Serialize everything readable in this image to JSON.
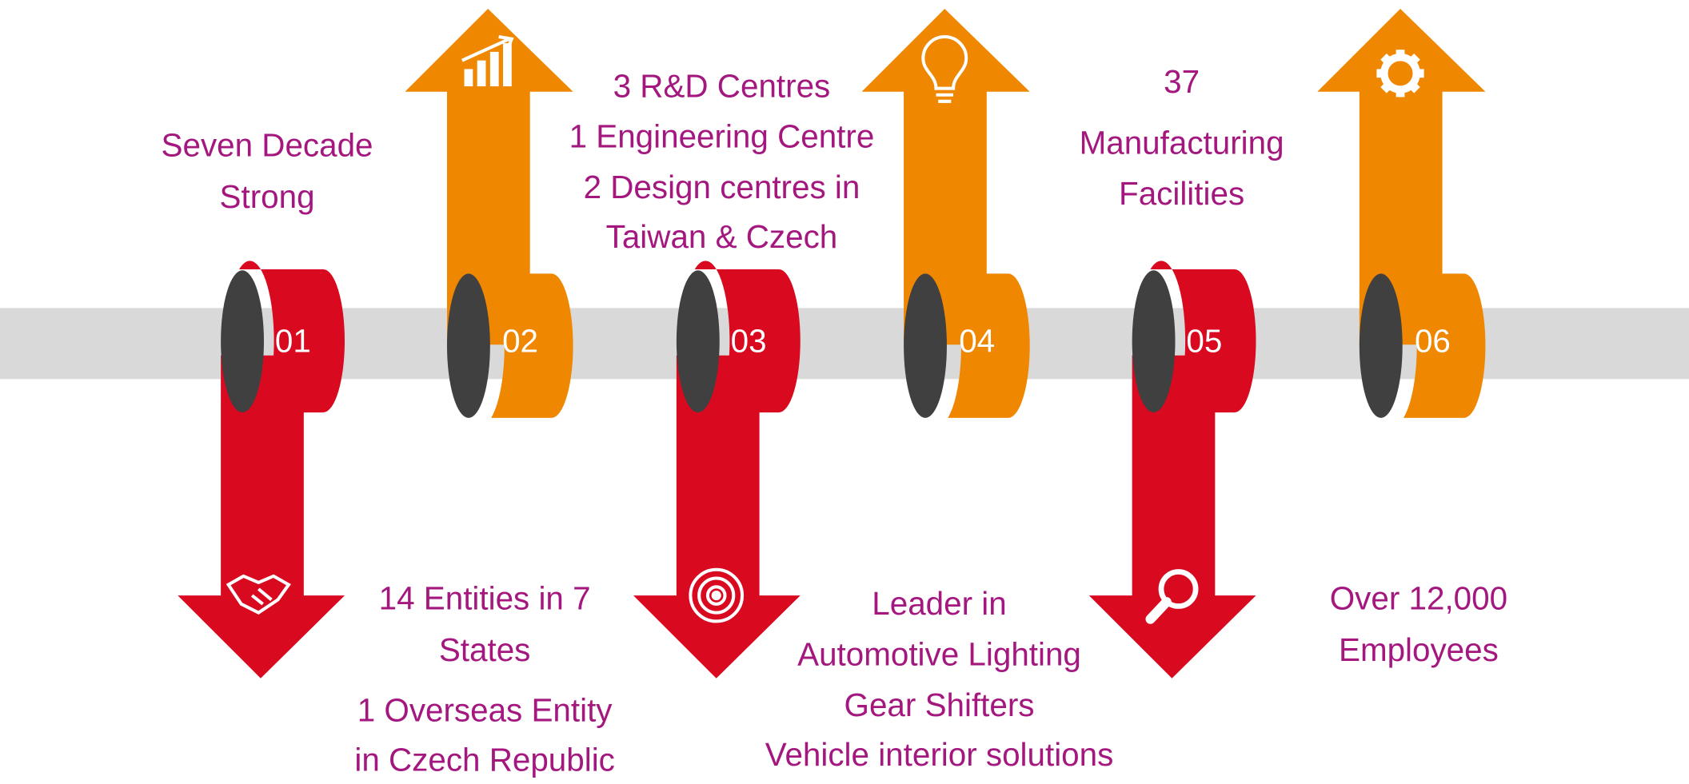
{
  "nodes": [
    {
      "number": "01",
      "caption": [
        "Seven Decade",
        "Strong"
      ]
    },
    {
      "number": "02",
      "caption": [
        "14 Entities in 7",
        "States",
        "1 Overseas Entity",
        "in Czech Republic"
      ]
    },
    {
      "number": "03",
      "caption": [
        "3 R&D Centres",
        "1 Engineering Centre",
        "2 Design centres in",
        "Taiwan & Czech"
      ]
    },
    {
      "number": "04",
      "caption": [
        "Leader in",
        "Automotive Lighting",
        "Gear Shifters",
        "Vehicle interior solutions"
      ]
    },
    {
      "number": "05",
      "caption": [
        "37",
        "Manufacturing",
        "Facilities"
      ]
    },
    {
      "number": "06",
      "caption": [
        "Over 12,000",
        "Employees"
      ]
    }
  ]
}
